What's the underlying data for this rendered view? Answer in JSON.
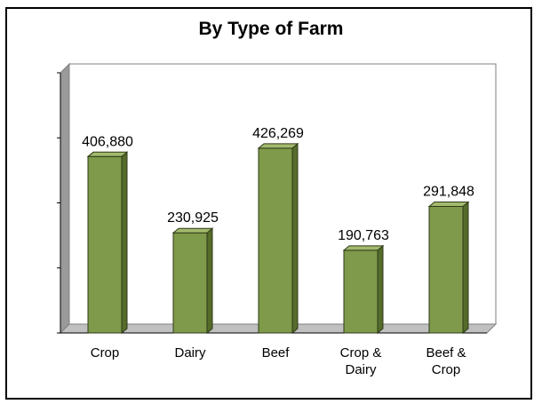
{
  "chart_data": {
    "type": "bar",
    "title": "By Type of Farm",
    "categories": [
      [
        "Crop"
      ],
      [
        "Dairy"
      ],
      [
        "Beef"
      ],
      [
        "Crop &",
        "Dairy"
      ],
      [
        "Beef &",
        "Crop"
      ]
    ],
    "values": [
      406880,
      230925,
      426269,
      190763,
      291848
    ],
    "value_labels": [
      "406,880",
      "230,925",
      "426,269",
      "190,763",
      "291,848"
    ],
    "ylim": [
      0,
      600000
    ],
    "y_tick_labels_shown": false,
    "grid": false,
    "style": "3d-bars",
    "colors": {
      "bar_front": "#7e9a4a",
      "bar_side": "#556b2a",
      "bar_top": "#a3b96d",
      "wall": "#ffffff",
      "floor": "#c0c0c0"
    }
  }
}
